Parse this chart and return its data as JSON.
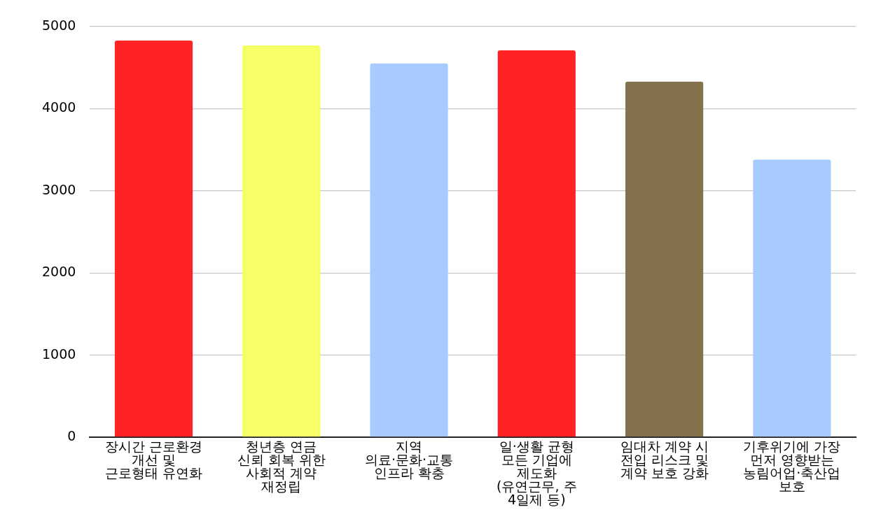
{
  "chart_data": {
    "type": "bar",
    "categories": [
      "장시간 근로환경 개선 및 근로형태 유연화",
      "청년층 연금 신뢰 회복 위한 사회적 계약 재정립",
      "지역 의료·문화·교통 인프라 확충",
      "일·생활 균형 모든 기업에 제도화 (유연근무, 주 4일제 등)",
      "임대차 계약 시 전입 리스크 및 계약 보호 강화",
      "기후위기에 가장 먼저 영향받는 농림어업·축산업 보호"
    ],
    "values": [
      4830,
      4770,
      4550,
      4710,
      4330,
      3380
    ],
    "colors": [
      "#ff2323",
      "#f6ff66",
      "#a8cbff",
      "#ff2323",
      "#83724b",
      "#a8cbff"
    ],
    "ylim": [
      0,
      5000
    ],
    "yticks": [
      0,
      1000,
      2000,
      3000,
      4000,
      5000
    ],
    "grid": "y",
    "legend": false
  }
}
